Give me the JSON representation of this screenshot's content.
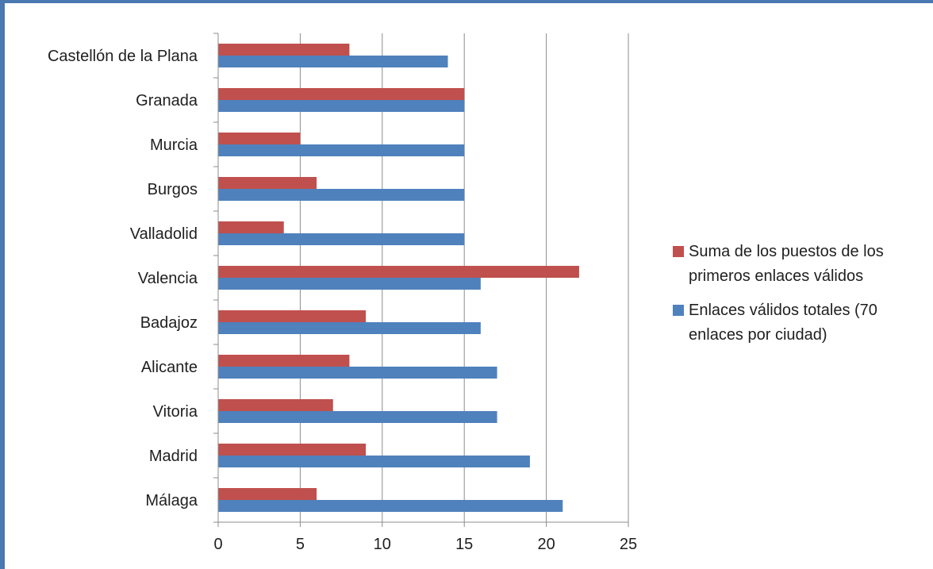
{
  "chart_data": {
    "type": "bar",
    "orientation": "horizontal",
    "categories": [
      "Castellón de la Plana",
      "Granada",
      "Murcia",
      "Burgos",
      "Valladolid",
      "Valencia",
      "Badajoz",
      "Alicante",
      "Vitoria",
      "Madrid",
      "Málaga"
    ],
    "series": [
      {
        "name": "Suma de los puestos de los primeros enlaces válidos",
        "color": "#c0504d",
        "values": [
          8,
          15,
          5,
          6,
          4,
          22,
          9,
          8,
          7,
          9,
          6
        ]
      },
      {
        "name": "Enlaces válidos totales (70 enlaces por ciudad)",
        "color": "#4f81bd",
        "values": [
          14,
          15,
          15,
          15,
          15,
          16,
          16,
          17,
          17,
          19,
          21
        ]
      }
    ],
    "xlim": [
      0,
      25
    ],
    "xticks": [
      0,
      5,
      10,
      15,
      20,
      25
    ],
    "grid": "vertical",
    "legend_position": "right",
    "title": "",
    "xlabel": "",
    "ylabel": ""
  },
  "legend": {
    "items": [
      {
        "label": "Suma de los puestos de los primeros enlaces válidos",
        "color": "#c0504d"
      },
      {
        "label": "Enlaces válidos totales (70 enlaces por ciudad)",
        "color": "#4f81bd"
      }
    ]
  }
}
